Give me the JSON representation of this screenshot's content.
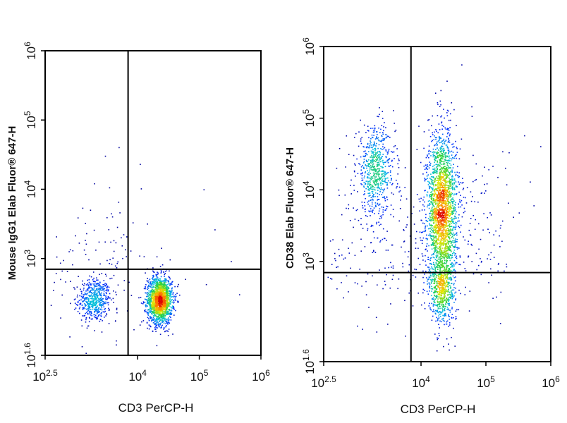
{
  "chart_data": [
    {
      "type": "scatter",
      "subtype": "flow-cytometry-density-dotplot",
      "title": "",
      "xlabel": "CD3 PerCP-H",
      "ylabel": "Mouse IgG1 Elab Fluor® 647-H",
      "x_scale": "log",
      "y_scale": "log",
      "xlim": [
        316,
        1000000
      ],
      "ylim": [
        40,
        1000000
      ],
      "x_ticks": [
        {
          "value": 316,
          "base": "10",
          "exp": "2.5"
        },
        {
          "value": 10000,
          "base": "10",
          "exp": "4"
        },
        {
          "value": 100000,
          "base": "10",
          "exp": "5"
        },
        {
          "value": 1000000,
          "base": "10",
          "exp": "6"
        }
      ],
      "y_ticks": [
        {
          "value": 40,
          "base": "10",
          "exp": "1.6"
        },
        {
          "value": 1000,
          "base": "10",
          "exp": "3"
        },
        {
          "value": 10000,
          "base": "10",
          "exp": "4"
        },
        {
          "value": 100000,
          "base": "10",
          "exp": "5"
        },
        {
          "value": 1000000,
          "base": "10",
          "exp": "6"
        }
      ],
      "quadrant_gates": {
        "x": 7000,
        "y": 700
      },
      "populations": [
        {
          "x_center": 2000,
          "y_center": 250,
          "x_spread_decades": 0.13,
          "y_spread_decades": 0.16,
          "events": 520
        },
        {
          "x_center": 23000,
          "y_center": 250,
          "x_spread_decades": 0.1,
          "y_spread_decades": 0.17,
          "events": 1700
        },
        {
          "x_center": 2800,
          "y_center": 800,
          "x_spread_decades": 0.45,
          "y_spread_decades": 0.5,
          "events": 120
        }
      ],
      "sparse_events": [
        {
          "x": 3000,
          "y": 30000
        },
        {
          "x": 5000,
          "y": 40000
        },
        {
          "x": 2000,
          "y": 12000
        },
        {
          "x": 3500,
          "y": 10500
        },
        {
          "x": 180000,
          "y": 2600
        },
        {
          "x": 330000,
          "y": 900
        },
        {
          "x": 130000,
          "y": 420
        },
        {
          "x": 60000,
          "y": 500
        },
        {
          "x": 450000,
          "y": 300
        }
      ],
      "grid": false,
      "legend": "none"
    },
    {
      "type": "scatter",
      "subtype": "flow-cytometry-density-dotplot",
      "title": "",
      "xlabel": "CD3 PerCP-H",
      "ylabel": "CD38 Elab Fluor® 647-H",
      "x_scale": "log",
      "y_scale": "log",
      "xlim": [
        316,
        1000000
      ],
      "ylim": [
        40,
        1000000
      ],
      "x_ticks": [
        {
          "value": 316,
          "base": "10",
          "exp": "2.5"
        },
        {
          "value": 10000,
          "base": "10",
          "exp": "4"
        },
        {
          "value": 100000,
          "base": "10",
          "exp": "5"
        },
        {
          "value": 1000000,
          "base": "10",
          "exp": "6"
        }
      ],
      "y_ticks": [
        {
          "value": 40,
          "base": "10",
          "exp": "1.6"
        },
        {
          "value": 1000,
          "base": "10",
          "exp": "3"
        },
        {
          "value": 10000,
          "base": "10",
          "exp": "4"
        },
        {
          "value": 100000,
          "base": "10",
          "exp": "5"
        },
        {
          "value": 1000000,
          "base": "10",
          "exp": "6"
        }
      ],
      "quadrant_gates": {
        "x": 7000,
        "y": 700
      },
      "populations": [
        {
          "x_center": 2000,
          "y_center": 18000,
          "x_spread_decades": 0.15,
          "y_spread_decades": 0.3,
          "events": 650
        },
        {
          "x_center": 21000,
          "y_center": 5000,
          "x_spread_decades": 0.11,
          "y_spread_decades": 0.55,
          "events": 2300
        },
        {
          "x_center": 21000,
          "y_center": 400,
          "x_spread_decades": 0.1,
          "y_spread_decades": 0.22,
          "events": 500
        },
        {
          "x_center": 3000,
          "y_center": 1500,
          "x_spread_decades": 0.5,
          "y_spread_decades": 0.55,
          "events": 200
        },
        {
          "x_center": 60000,
          "y_center": 3000,
          "x_spread_decades": 0.35,
          "y_spread_decades": 0.6,
          "events": 180
        }
      ],
      "sparse_events": [
        {
          "x": 500,
          "y": 20000
        },
        {
          "x": 600,
          "y": 4500
        },
        {
          "x": 550000,
          "y": 6000
        },
        {
          "x": 400000,
          "y": 700
        },
        {
          "x": 200000,
          "y": 20000
        },
        {
          "x": 700000,
          "y": 40000
        }
      ],
      "grid": false,
      "legend": "none"
    }
  ]
}
